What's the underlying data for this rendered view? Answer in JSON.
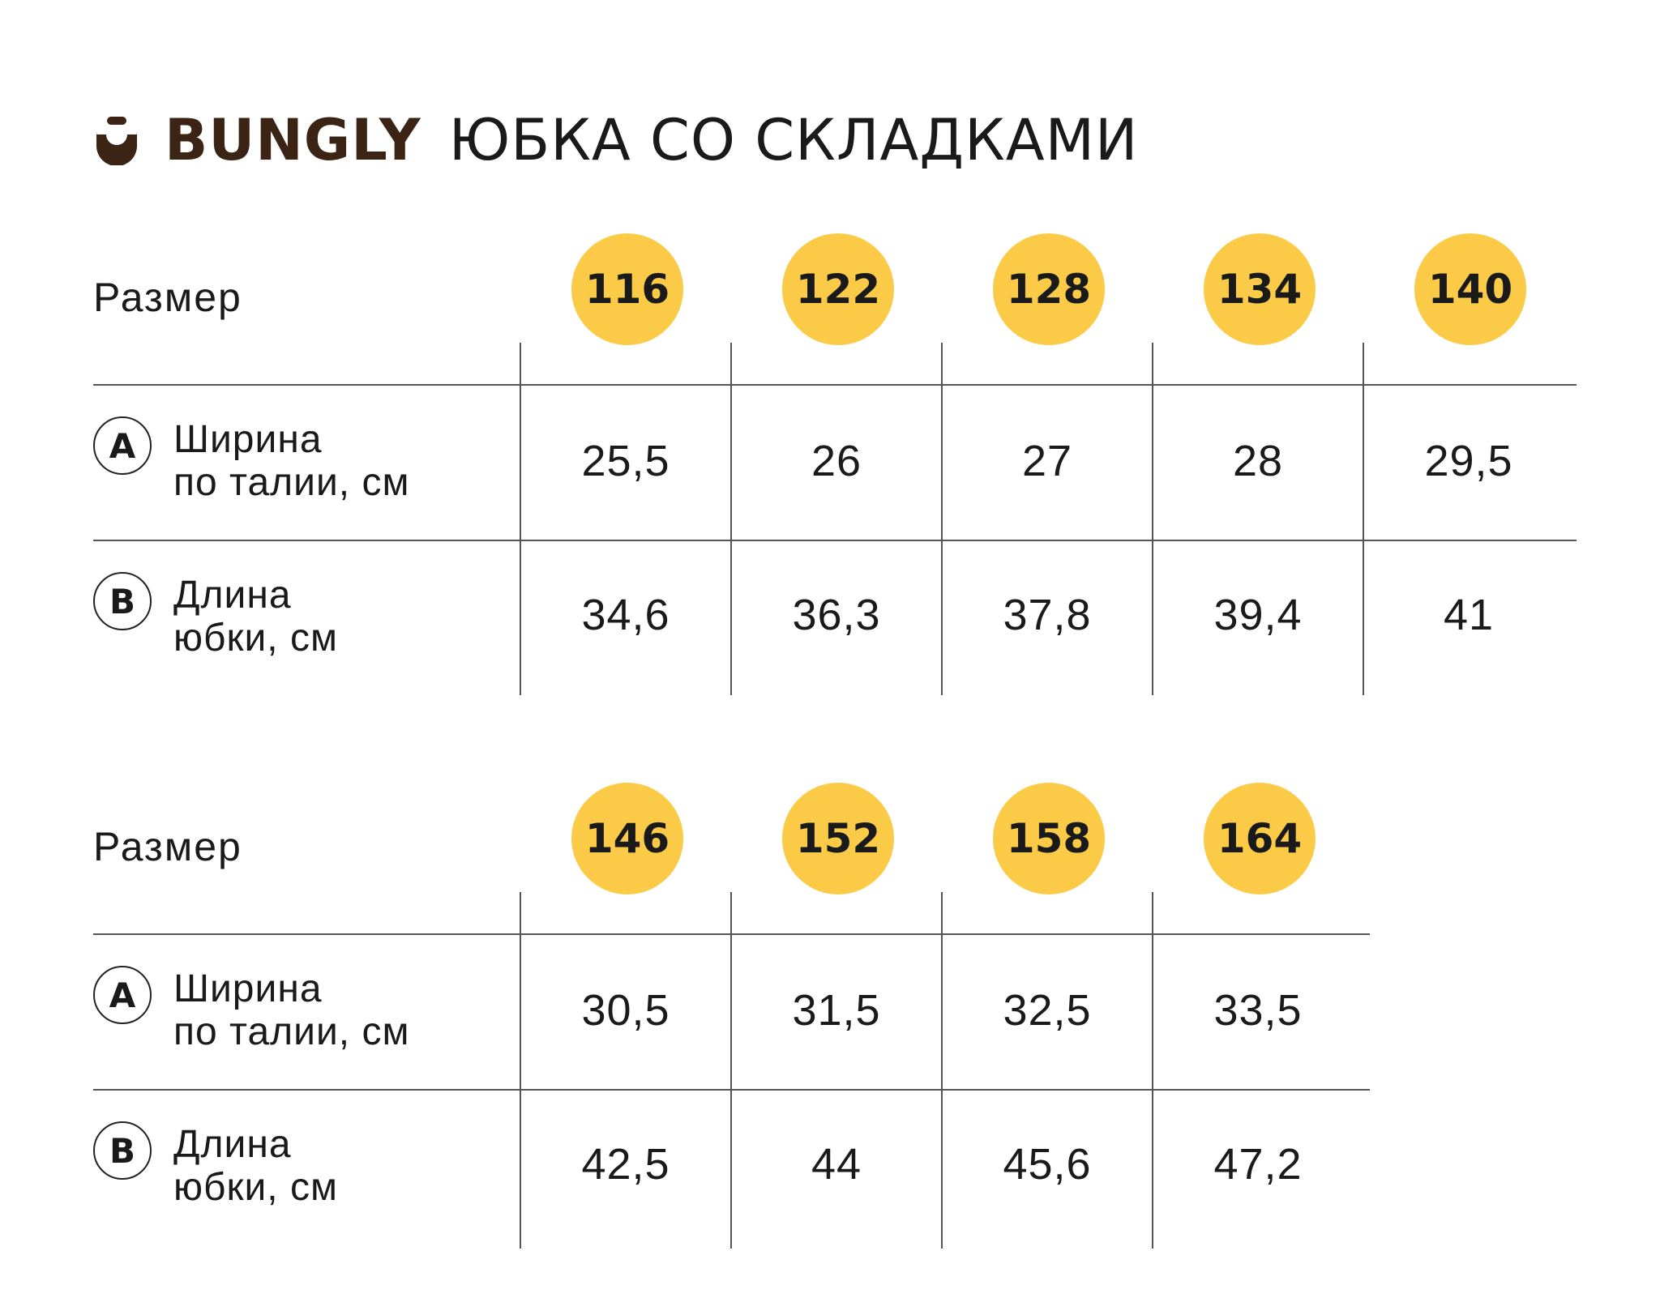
{
  "header": {
    "brand": "BUNGLY",
    "product_title": "ЮБКА СО СКЛАДКАМИ",
    "logo_icon": "bungly-logo-icon",
    "brand_color": "#3b2414"
  },
  "colors": {
    "badge": "#fbcb47",
    "lines": "#555555"
  },
  "tables": [
    {
      "size_label": "Размер",
      "sizes": [
        "116",
        "122",
        "128",
        "134",
        "140"
      ],
      "rows": [
        {
          "letter": "A",
          "name_line1": "Ширина",
          "name_line2": "по талии, см",
          "values": [
            "25,5",
            "26",
            "27",
            "28",
            "29,5"
          ]
        },
        {
          "letter": "B",
          "name_line1": "Длина",
          "name_line2": "юбки, см",
          "values": [
            "34,6",
            "36,3",
            "37,8",
            "39,4",
            "41"
          ]
        }
      ]
    },
    {
      "size_label": "Размер",
      "sizes": [
        "146",
        "152",
        "158",
        "164"
      ],
      "rows": [
        {
          "letter": "A",
          "name_line1": "Ширина",
          "name_line2": "по талии, см",
          "values": [
            "30,5",
            "31,5",
            "32,5",
            "33,5"
          ]
        },
        {
          "letter": "B",
          "name_line1": "Длина",
          "name_line2": "юбки, см",
          "values": [
            "42,5",
            "44",
            "45,6",
            "47,2"
          ]
        }
      ]
    }
  ]
}
